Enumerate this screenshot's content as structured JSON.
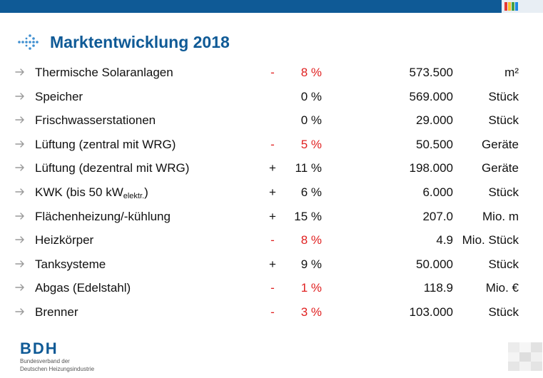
{
  "title": "Marktentwicklung 2018",
  "colors": {
    "brand": "#0f5a96",
    "negative": "#e02020",
    "arrow": "#9a9a9a"
  },
  "icons": {
    "title": "dotted-arrow-icon",
    "row": "arrow-right-icon"
  },
  "rows": [
    {
      "label": "Thermische Solaranlagen",
      "sign": "-",
      "pct": "8 %",
      "value": "573.500",
      "unit": "m²",
      "negative": true
    },
    {
      "label": "Speicher",
      "sign": "",
      "pct": "0 %",
      "value": "569.000",
      "unit": "Stück",
      "negative": false
    },
    {
      "label": "Frischwasserstationen",
      "sign": "",
      "pct": "0 %",
      "value": "29.000",
      "unit": "Stück",
      "negative": false
    },
    {
      "label": "Lüftung (zentral mit WRG)",
      "sign": "-",
      "pct": "5 %",
      "value": "50.500",
      "unit": "Geräte",
      "negative": true
    },
    {
      "label": "Lüftung (dezentral mit WRG)",
      "sign": "+",
      "pct": "11 %",
      "value": "198.000",
      "unit": "Geräte",
      "negative": false
    },
    {
      "label": "KWK (bis 50 kW",
      "label_sub": "elektr.",
      "label_end": ")",
      "sign": "+",
      "pct": "6 %",
      "value": "6.000",
      "unit": "Stück",
      "negative": false
    },
    {
      "label": "Flächenheizung/-kühlung",
      "sign": "+",
      "pct": "15 %",
      "value": "207.0",
      "unit": "Mio. m",
      "negative": false
    },
    {
      "label": "Heizkörper",
      "sign": "-",
      "pct": "8 %",
      "value": "4.9",
      "unit": "Mio. Stück",
      "negative": true
    },
    {
      "label": "Tanksysteme",
      "sign": "+",
      "pct": "9 %",
      "value": "50.000",
      "unit": "Stück",
      "negative": false
    },
    {
      "label": "Abgas (Edelstahl)",
      "sign": "-",
      "pct": "1 %",
      "value": "118.9",
      "unit": "Mio. €",
      "negative": true
    },
    {
      "label": "Brenner",
      "sign": "-",
      "pct": "3 %",
      "value": "103.000",
      "unit": "Stück",
      "negative": true
    }
  ],
  "logo": {
    "name": "BDH",
    "subtitle_line1": "Bundesverband der",
    "subtitle_line2": "Deutschen Heizungsindustrie"
  }
}
